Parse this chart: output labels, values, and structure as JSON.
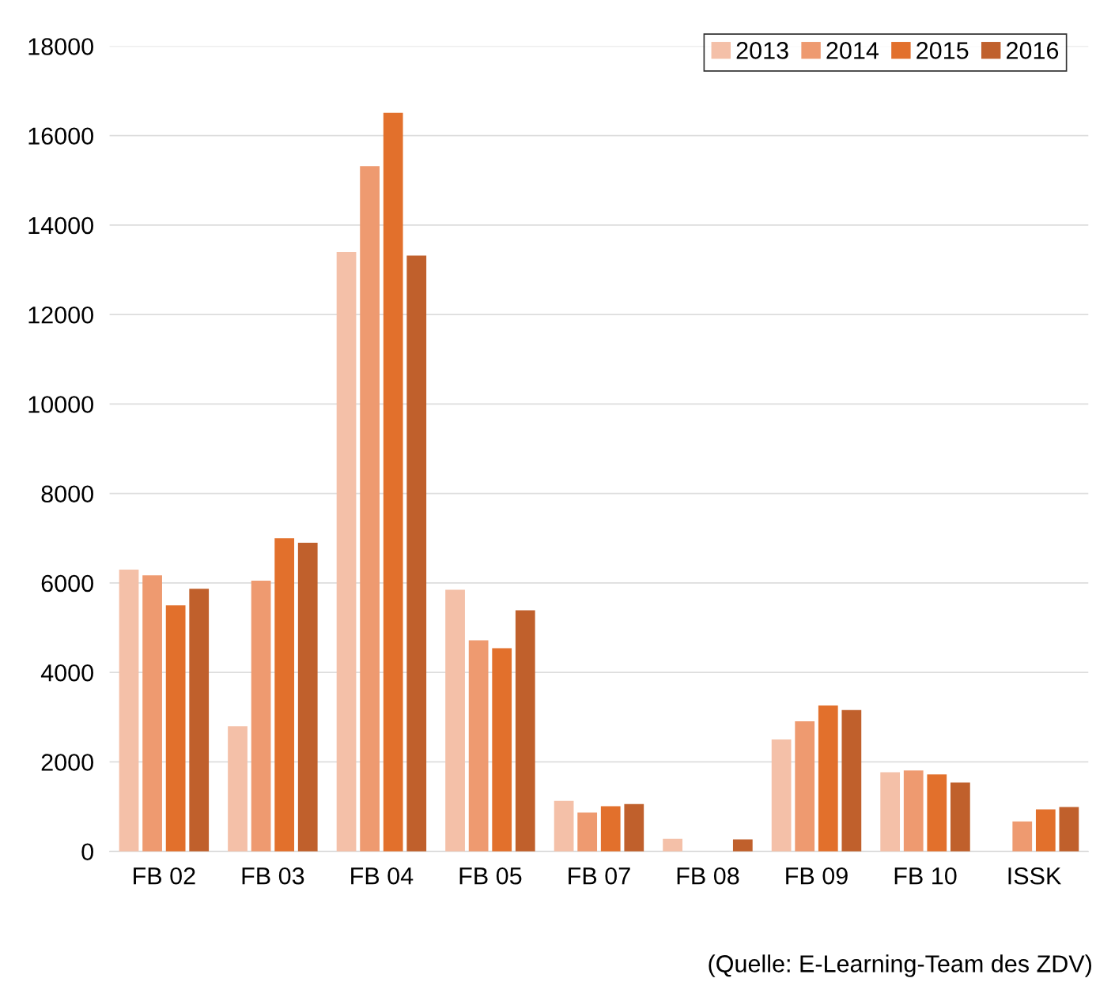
{
  "chart_data": {
    "type": "bar",
    "categories": [
      "FB 02",
      "FB 03",
      "FB 04",
      "FB 05",
      "FB 07",
      "FB 08",
      "FB 09",
      "FB 10",
      "ISSK"
    ],
    "series": [
      {
        "name": "2013",
        "color": "#f4c0a8",
        "values": [
          6300,
          2800,
          13400,
          5850,
          1130,
          280,
          2500,
          1770,
          null
        ]
      },
      {
        "name": "2014",
        "color": "#ee9a70",
        "values": [
          6170,
          6050,
          15320,
          4720,
          870,
          null,
          2910,
          1810,
          670
        ]
      },
      {
        "name": "2015",
        "color": "#e2702c",
        "values": [
          5500,
          7000,
          16510,
          4540,
          1010,
          null,
          3260,
          1720,
          940
        ]
      },
      {
        "name": "2016",
        "color": "#c0602c",
        "values": [
          5870,
          6900,
          13320,
          5390,
          1060,
          270,
          3160,
          1540,
          990
        ]
      }
    ],
    "ylim": [
      0,
      18000
    ],
    "yticks": [
      0,
      2000,
      4000,
      6000,
      8000,
      10000,
      12000,
      14000,
      16000,
      18000
    ],
    "grid": "y",
    "legend": "top right",
    "annotations": [
      "(Quelle: E-Learning-Team des ZDV)"
    ]
  }
}
